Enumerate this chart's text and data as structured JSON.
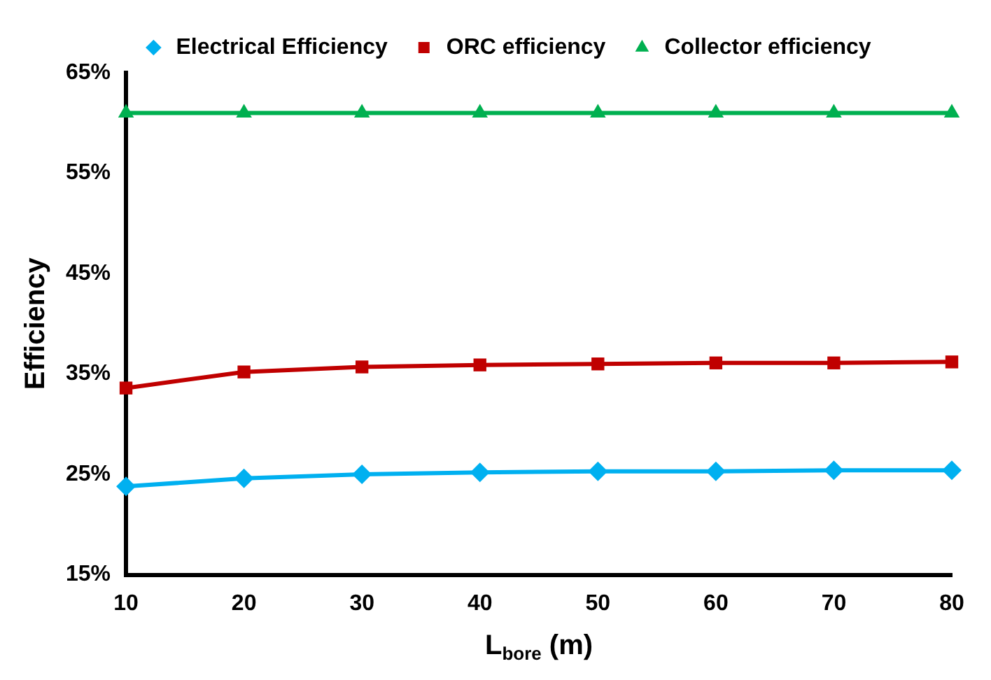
{
  "chart_data": {
    "type": "line",
    "xlabel": "L$_{bore}$ (m)",
    "ylabel": "Efficiency",
    "x": [
      10,
      20,
      30,
      40,
      50,
      60,
      70,
      80
    ],
    "xlim": [
      10,
      80
    ],
    "xticks": [
      10,
      20,
      30,
      40,
      50,
      60,
      70,
      80
    ],
    "ylim": [
      15,
      65
    ],
    "yticks": [
      {
        "value": 15,
        "label": "15%"
      },
      {
        "value": 25,
        "label": "25%"
      },
      {
        "value": 35,
        "label": "35%"
      },
      {
        "value": 45,
        "label": "45%"
      },
      {
        "value": 55,
        "label": "55%"
      },
      {
        "value": 65,
        "label": "65%"
      }
    ],
    "grid": false,
    "legend": "top",
    "line_style": "solid",
    "series": [
      {
        "name": "Electrical Efficiency",
        "color": "#00b0f0",
        "marker": "diamond",
        "values": [
          23.8,
          24.6,
          25.0,
          25.2,
          25.3,
          25.3,
          25.4,
          25.4
        ]
      },
      {
        "name": "ORC efficiency",
        "color": "#c00000",
        "marker": "square",
        "values": [
          33.6,
          35.2,
          35.7,
          35.9,
          36.0,
          36.1,
          36.1,
          36.2
        ]
      },
      {
        "name": "Collector efficiency",
        "color": "#00b050",
        "marker": "triangle",
        "values": [
          61,
          61,
          61,
          61,
          61,
          61,
          61,
          61
        ]
      }
    ]
  }
}
